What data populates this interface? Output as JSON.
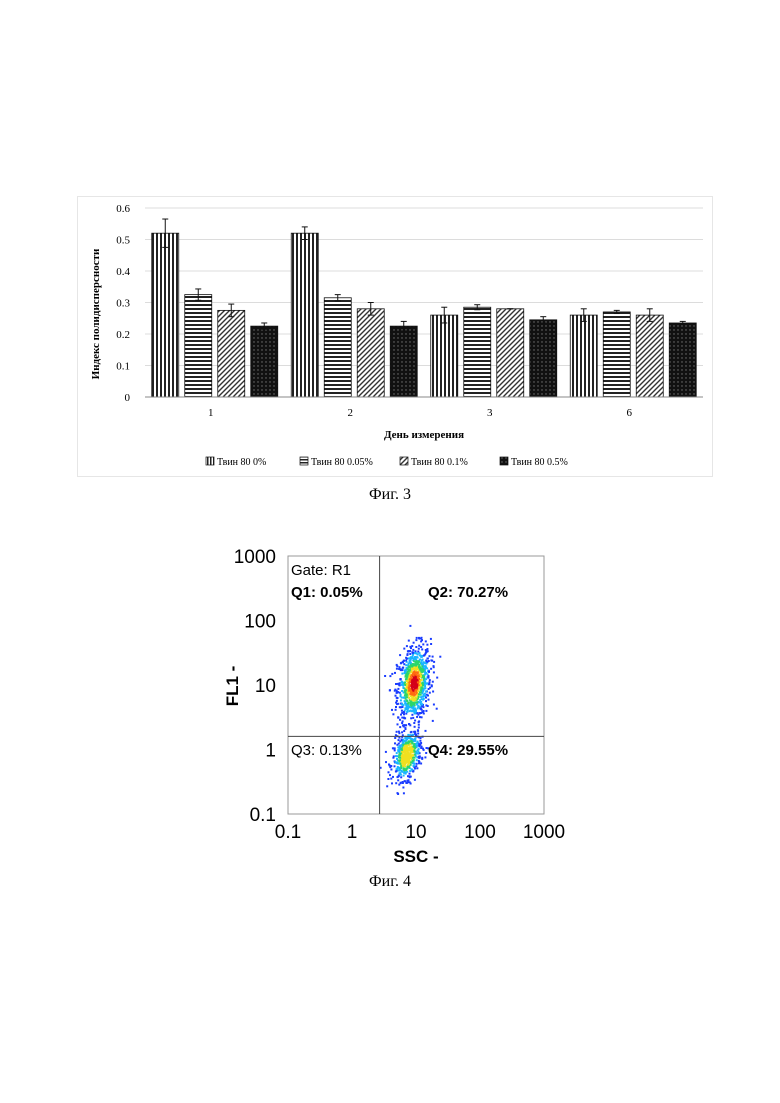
{
  "figures": [
    {
      "caption": "Фиг. 3",
      "chart_data": {
        "type": "bar",
        "xlabel": "День измерения",
        "ylabel": "Индекс полидисперсности",
        "ylim": [
          0,
          0.6
        ],
        "yticks": [
          0,
          0.1,
          0.2,
          0.3,
          0.4,
          0.5,
          0.6
        ],
        "categories": [
          "1",
          "2",
          "3",
          "6"
        ],
        "legend_position": "bottom",
        "series": [
          {
            "name": "Твин 80 0%",
            "pattern": "vertical-stripes",
            "values": [
              0.52,
              0.52,
              0.26,
              0.26
            ],
            "errors": [
              0.045,
              0.02,
              0.025,
              0.02
            ]
          },
          {
            "name": "Твин 80 0.05%",
            "pattern": "horizontal-stripes",
            "values": [
              0.325,
              0.315,
              0.285,
              0.27
            ],
            "errors": [
              0.018,
              0.01,
              0.008,
              0.005
            ]
          },
          {
            "name": "Твин 80 0.1%",
            "pattern": "diagonal-hatch",
            "values": [
              0.275,
              0.28,
              0.28,
              0.26
            ],
            "errors": [
              0.02,
              0.02,
              0.0,
              0.02
            ]
          },
          {
            "name": "Твин 80 0.5%",
            "pattern": "dotted-dark",
            "values": [
              0.225,
              0.225,
              0.245,
              0.235
            ],
            "errors": [
              0.01,
              0.015,
              0.01,
              0.005
            ]
          }
        ]
      }
    },
    {
      "caption": "Фиг. 4",
      "chart_data": {
        "type": "scatter",
        "xlabel": "SSC  -",
        "ylabel": "FL1  -",
        "xscale": "log",
        "yscale": "log",
        "xlim": [
          0.1,
          1000
        ],
        "ylim": [
          0.1,
          1000
        ],
        "ticks": [
          "0.1",
          "1",
          "10",
          "100",
          "1000"
        ],
        "gate_label": "Gate: R1",
        "quadrant_divider": {
          "x": 2.7,
          "y": 1.6
        },
        "quadrants": [
          {
            "label": "Q1: 0.05%"
          },
          {
            "label": "Q2: 70.27%"
          },
          {
            "label": "Q3: 0.13%"
          },
          {
            "label": "Q4: 29.55%"
          }
        ],
        "populations": [
          {
            "center_x": 9,
            "center_y": 11,
            "spread_log_x": 0.13,
            "spread_log_y": 0.28
          },
          {
            "center_x": 7,
            "center_y": 0.85,
            "spread_log_x": 0.11,
            "spread_log_y": 0.18
          }
        ],
        "density_colors": [
          "#1a3cff",
          "#19b5ff",
          "#2bd66b",
          "#f0e020",
          "#ff6a10",
          "#d4001a"
        ]
      }
    }
  ]
}
